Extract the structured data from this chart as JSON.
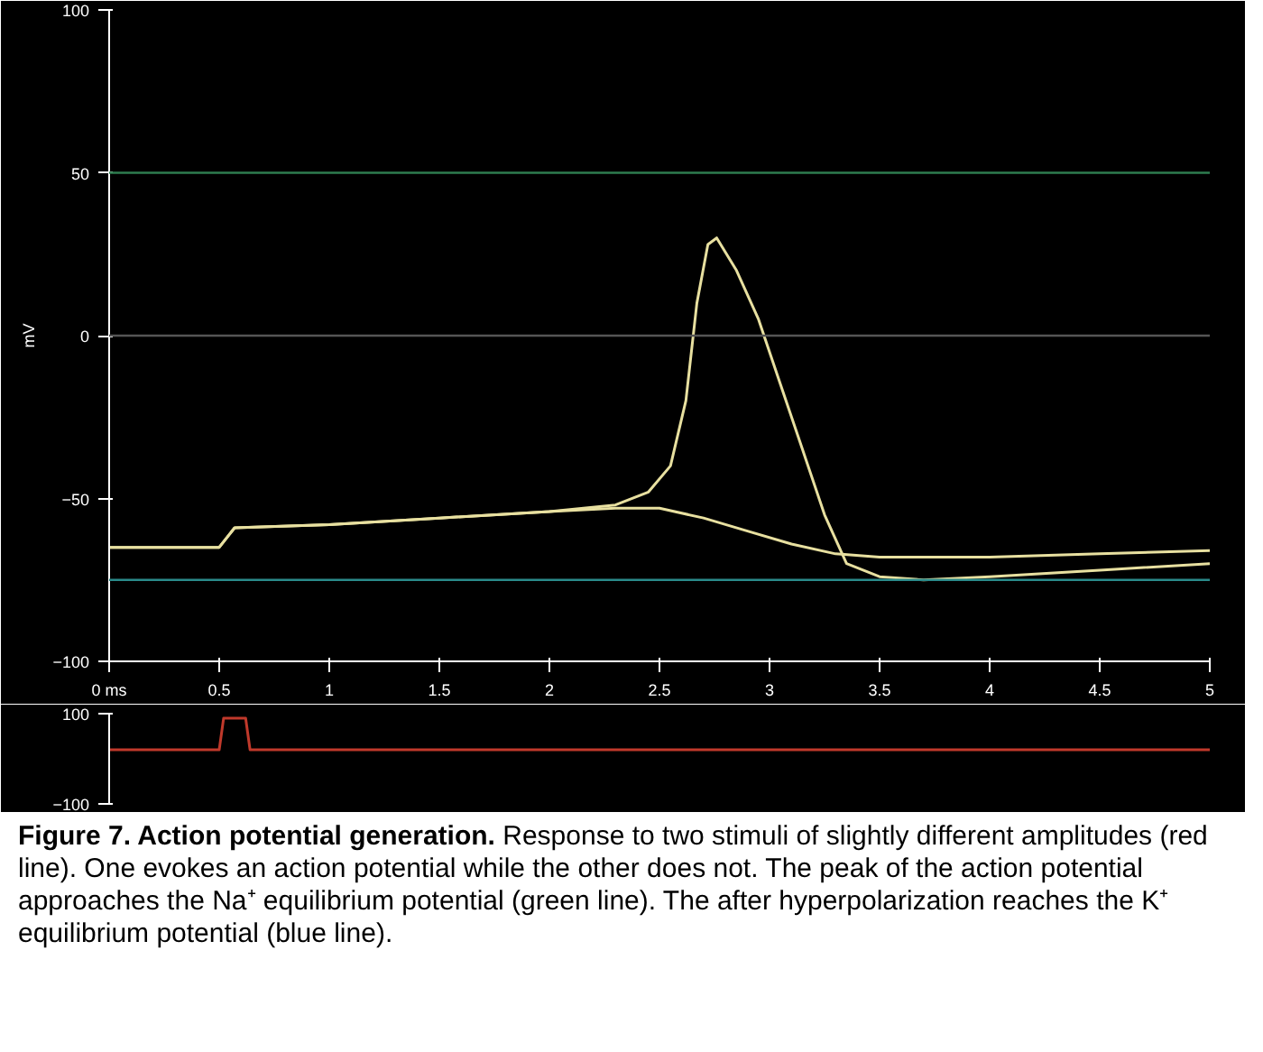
{
  "chart_data": [
    {
      "type": "line",
      "xlim": [
        0,
        5
      ],
      "ylim": [
        -100,
        100
      ],
      "xticks": [
        {
          "value": 0,
          "label": "0 ms"
        },
        0.5,
        1,
        1.5,
        2,
        2.5,
        3,
        3.5,
        4,
        4.5,
        5
      ],
      "yticks": [
        -100,
        -50,
        0,
        50,
        100
      ],
      "ylabel": "mV",
      "grid": false,
      "marker": "none",
      "line_style": "solid",
      "series": [
        {
          "color": "#e8e0a0",
          "x": [
            0,
            0.5,
            0.57,
            1,
            1.5,
            2,
            2.3,
            2.45,
            2.55,
            2.62,
            2.67,
            2.72,
            2.76,
            2.85,
            2.95,
            3.05,
            3.15,
            3.25,
            3.35,
            3.5,
            3.7,
            4,
            4.5,
            5
          ],
          "values": [
            -65,
            -65,
            -59,
            -58,
            -56,
            -54,
            -52,
            -48,
            -40,
            -20,
            10,
            28,
            30,
            20,
            5,
            -15,
            -35,
            -55,
            -70,
            -74,
            -75,
            -74,
            -72,
            -70
          ]
        },
        {
          "color": "#e8e0a0",
          "x": [
            0,
            0.5,
            0.57,
            1,
            1.5,
            2,
            2.3,
            2.5,
            2.7,
            2.9,
            3.1,
            3.3,
            3.5,
            4,
            4.5,
            5
          ],
          "values": [
            -65,
            -65,
            -59,
            -58,
            -56,
            -54,
            -53,
            -53,
            -56,
            -60,
            -64,
            -67,
            -68,
            -68,
            -67,
            -66
          ]
        }
      ],
      "ref_lines": [
        {
          "axis": "y",
          "value": 50,
          "color": "#2e7d4f"
        },
        {
          "axis": "y",
          "value": 0,
          "color": "#555555"
        },
        {
          "axis": "y",
          "value": -75,
          "color": "#2a8a8a"
        }
      ]
    },
    {
      "type": "line",
      "xlim": [
        0,
        5
      ],
      "ylim": [
        -100,
        100
      ],
      "yticks": [
        -100,
        100
      ],
      "tick_labels": "y",
      "grid": false,
      "series": [
        {
          "color": "#c0392b",
          "x": [
            0,
            0.5,
            0.52,
            0.62,
            0.64,
            5
          ],
          "values": [
            20,
            20,
            90,
            90,
            20,
            20
          ]
        }
      ],
      "title": "Figure 7. Action potential generation.",
      "annotations": [
        "Response to two stimuli of slightly different amplitudes (red line). One evokes an action potential while the other does not. The peak of the action potential approaches the Na⁺ equilibrium potential (green line). The after hyperpolarization reaches the K⁺ equilibrium potential (blue line)."
      ]
    }
  ]
}
